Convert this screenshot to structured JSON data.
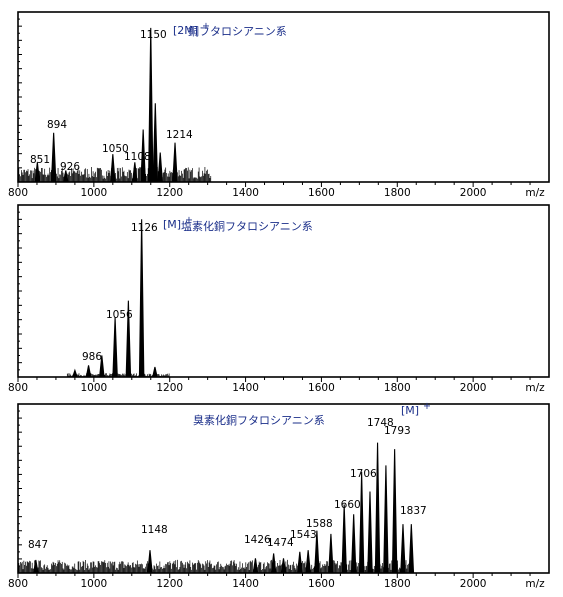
{
  "chart_data": [
    {
      "type": "bar",
      "title": "銅フタロシアニン系",
      "ion_label": "[2M]",
      "ion_charge": "+",
      "xlabel": "m/z",
      "xlim": [
        800,
        2200
      ],
      "x_ticks": [
        "800",
        "1000",
        "1200",
        "1400",
        "1600",
        "1800",
        "2000"
      ],
      "peak_labels": [
        "851",
        "894",
        "926",
        "1050",
        "1108",
        "1150",
        "1214"
      ],
      "peaks": [
        {
          "x": 851,
          "y": 12
        },
        {
          "x": 894,
          "y": 30
        },
        {
          "x": 926,
          "y": 7
        },
        {
          "x": 1050,
          "y": 17
        },
        {
          "x": 1108,
          "y": 12
        },
        {
          "x": 1130,
          "y": 32
        },
        {
          "x": 1150,
          "y": 94
        },
        {
          "x": 1162,
          "y": 48
        },
        {
          "x": 1175,
          "y": 18
        },
        {
          "x": 1214,
          "y": 24
        }
      ],
      "noise_from": 800,
      "noise_to": 1310,
      "noise_level": 8
    },
    {
      "type": "bar",
      "title": "塩素化銅フタロシアニン系",
      "ion_label": "[M]",
      "ion_charge": "+",
      "xlabel": "m/z",
      "xlim": [
        800,
        2200
      ],
      "x_ticks": [
        "800",
        "1000",
        "1200",
        "1400",
        "1600",
        "1800",
        "2000"
      ],
      "peak_labels": [
        "986",
        "1056",
        "1126"
      ],
      "peaks": [
        {
          "x": 950,
          "y": 4
        },
        {
          "x": 986,
          "y": 7
        },
        {
          "x": 1021,
          "y": 13
        },
        {
          "x": 1056,
          "y": 36
        },
        {
          "x": 1091,
          "y": 46
        },
        {
          "x": 1126,
          "y": 95
        },
        {
          "x": 1161,
          "y": 6
        }
      ],
      "noise_from": 930,
      "noise_to": 1200,
      "noise_level": 2
    },
    {
      "type": "bar",
      "title": "臭素化銅フタロシアニン系",
      "ion_label": "[M]",
      "ion_charge": "+",
      "xlabel": "m/z",
      "xlim": [
        800,
        2200
      ],
      "x_ticks": [
        "800",
        "1000",
        "1200",
        "1400",
        "1600",
        "1800",
        "2000"
      ],
      "peak_labels": [
        "847",
        "1148",
        "1426",
        "1474",
        "1543",
        "1588",
        "1660",
        "1706",
        "1748",
        "1793",
        "1837"
      ],
      "peaks": [
        {
          "x": 847,
          "y": 8
        },
        {
          "x": 1148,
          "y": 14
        },
        {
          "x": 1426,
          "y": 9
        },
        {
          "x": 1474,
          "y": 12
        },
        {
          "x": 1500,
          "y": 9
        },
        {
          "x": 1543,
          "y": 13
        },
        {
          "x": 1565,
          "y": 14
        },
        {
          "x": 1588,
          "y": 26
        },
        {
          "x": 1625,
          "y": 24
        },
        {
          "x": 1660,
          "y": 42
        },
        {
          "x": 1685,
          "y": 36
        },
        {
          "x": 1706,
          "y": 62
        },
        {
          "x": 1728,
          "y": 50
        },
        {
          "x": 1748,
          "y": 80
        },
        {
          "x": 1770,
          "y": 66
        },
        {
          "x": 1793,
          "y": 76
        },
        {
          "x": 1815,
          "y": 30
        },
        {
          "x": 1837,
          "y": 30
        }
      ],
      "noise_from": 800,
      "noise_to": 1840,
      "noise_level": 7
    }
  ]
}
